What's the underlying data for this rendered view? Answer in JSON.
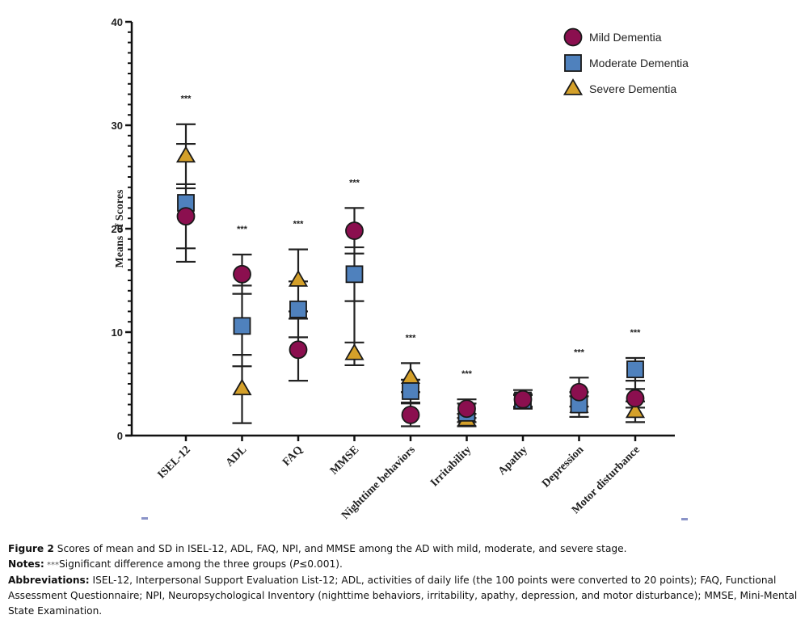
{
  "chart_data": {
    "type": "scatter",
    "subtype": "mean-with-sd-error-bars",
    "title": "",
    "xlabel": "",
    "ylabel": "Means of Scores",
    "ylim": [
      0,
      40
    ],
    "y_major_ticks": [
      0,
      10,
      20,
      30,
      40
    ],
    "y_minor_step": 1,
    "grid": false,
    "legend_position": "top-right",
    "categories": [
      "ISEL-12",
      "ADL",
      "FAQ",
      "MMSE",
      "Nighttime behaviors",
      "Irritability",
      "Apathy",
      "Depression",
      "Motor disturbance"
    ],
    "significance": [
      "***",
      "***",
      "***",
      "***",
      "***",
      "***",
      "",
      "***",
      "***"
    ],
    "series": [
      {
        "name": "Mild Dementia",
        "marker": "circle",
        "color": "#8b0f4f",
        "values": [
          21.2,
          15.6,
          8.3,
          19.8,
          2.0,
          2.6,
          3.5,
          4.2,
          3.6
        ],
        "sd": [
          3.1,
          1.9,
          3.0,
          2.2,
          1.1,
          0.9,
          0.9,
          1.4,
          0.9
        ]
      },
      {
        "name": "Moderate Dementia",
        "marker": "square",
        "color": "#4f81bd",
        "values": [
          22.5,
          10.6,
          12.2,
          15.6,
          4.3,
          2.2,
          3.4,
          3.0,
          6.4
        ],
        "sd": [
          5.7,
          3.9,
          2.7,
          2.6,
          1.1,
          0.9,
          0.6,
          1.2,
          1.1
        ]
      },
      {
        "name": "Severe Dementia",
        "marker": "triangle",
        "color": "#d4a02a",
        "values": [
          27.0,
          4.5,
          15.0,
          7.9,
          5.6,
          1.5,
          3.3,
          2.8,
          2.3
        ],
        "sd": [
          3.1,
          3.3,
          3.0,
          1.1,
          1.4,
          0.6,
          0.6,
          1.0,
          1.0
        ]
      }
    ]
  },
  "caption": {
    "figure_label": "Figure 2",
    "figure_text": " Scores of mean and SD in ISEL-12, ADL, FAQ, NPI, and MMSE among the AD with mild, moderate, and severe stage.",
    "notes_label": "Notes:",
    "notes_stars": " ***",
    "notes_text_before": "Significant difference among the three groups (",
    "notes_p": "P",
    "notes_text_after": "≤0.001).",
    "abbr_label": "Abbreviations:",
    "abbr_text": " ISEL-12, Interpersonal Support Evaluation List-12; ADL, activities of daily life (the 100 points were converted to 20 points); FAQ, Functional Assessment Questionnaire; NPI, Neuropsychological Inventory (nighttime behaviors, irritability, apathy, depression, and motor disturbance); MMSE, Mini-Mental State Examination."
  }
}
